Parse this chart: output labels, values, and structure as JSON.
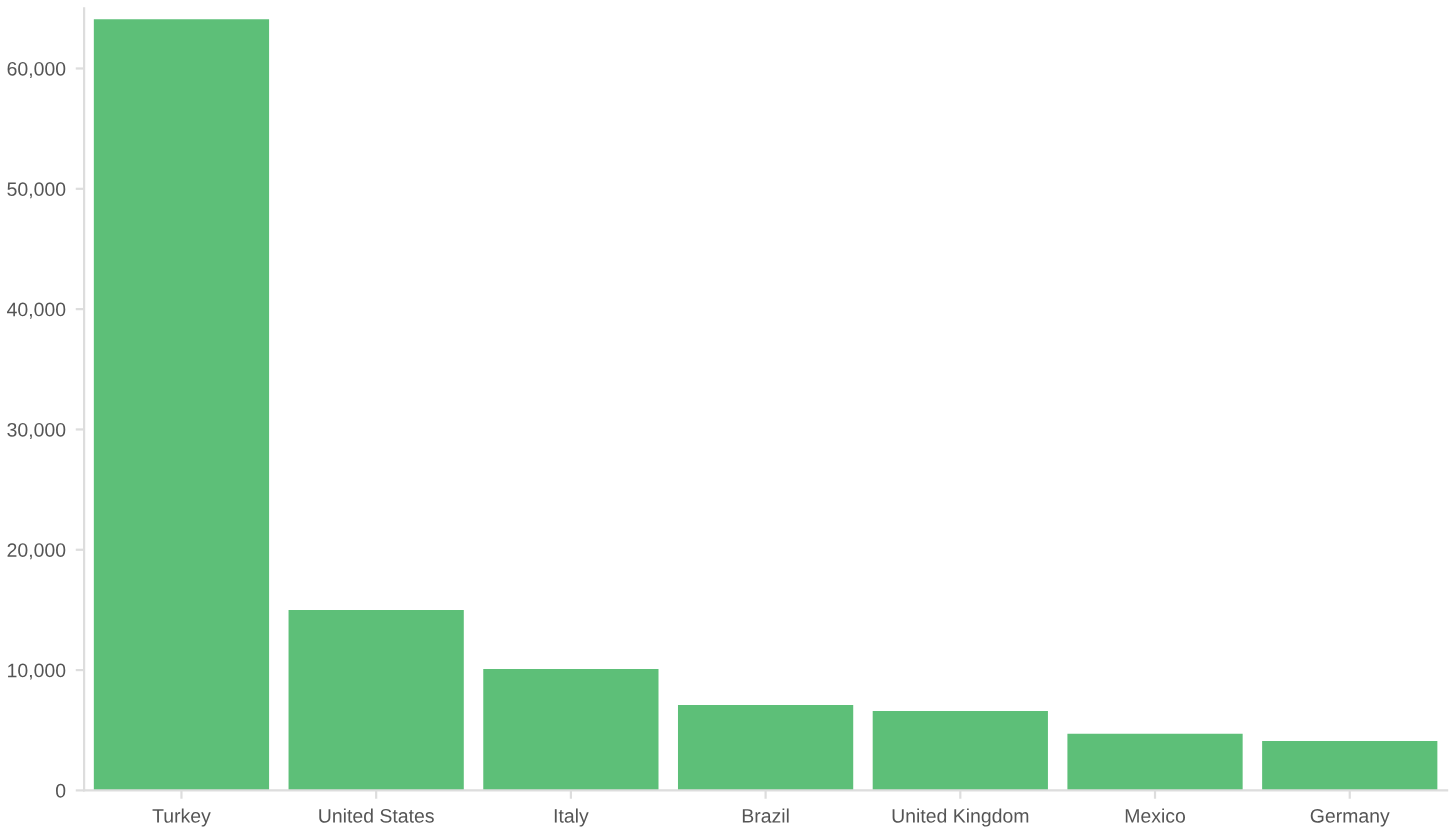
{
  "chart_data": {
    "type": "bar",
    "categories": [
      "Turkey",
      "United States",
      "Italy",
      "Brazil",
      "United Kingdom",
      "Mexico",
      "Germany"
    ],
    "values": [
      64100,
      15000,
      10100,
      7100,
      6600,
      4700,
      4100
    ],
    "color": "#5dbf78",
    "ylim": [
      0,
      65000
    ],
    "yticks": [
      0,
      {
        "value": 10000,
        "label": "10,000"
      },
      {
        "value": 20000,
        "label": "20,000"
      },
      {
        "value": 30000,
        "label": "30,000"
      },
      {
        "value": 40000,
        "label": "40,000"
      },
      {
        "value": 50000,
        "label": "50,000"
      },
      {
        "value": 60000,
        "label": "60,000"
      }
    ],
    "grid": false,
    "legend": false
  }
}
